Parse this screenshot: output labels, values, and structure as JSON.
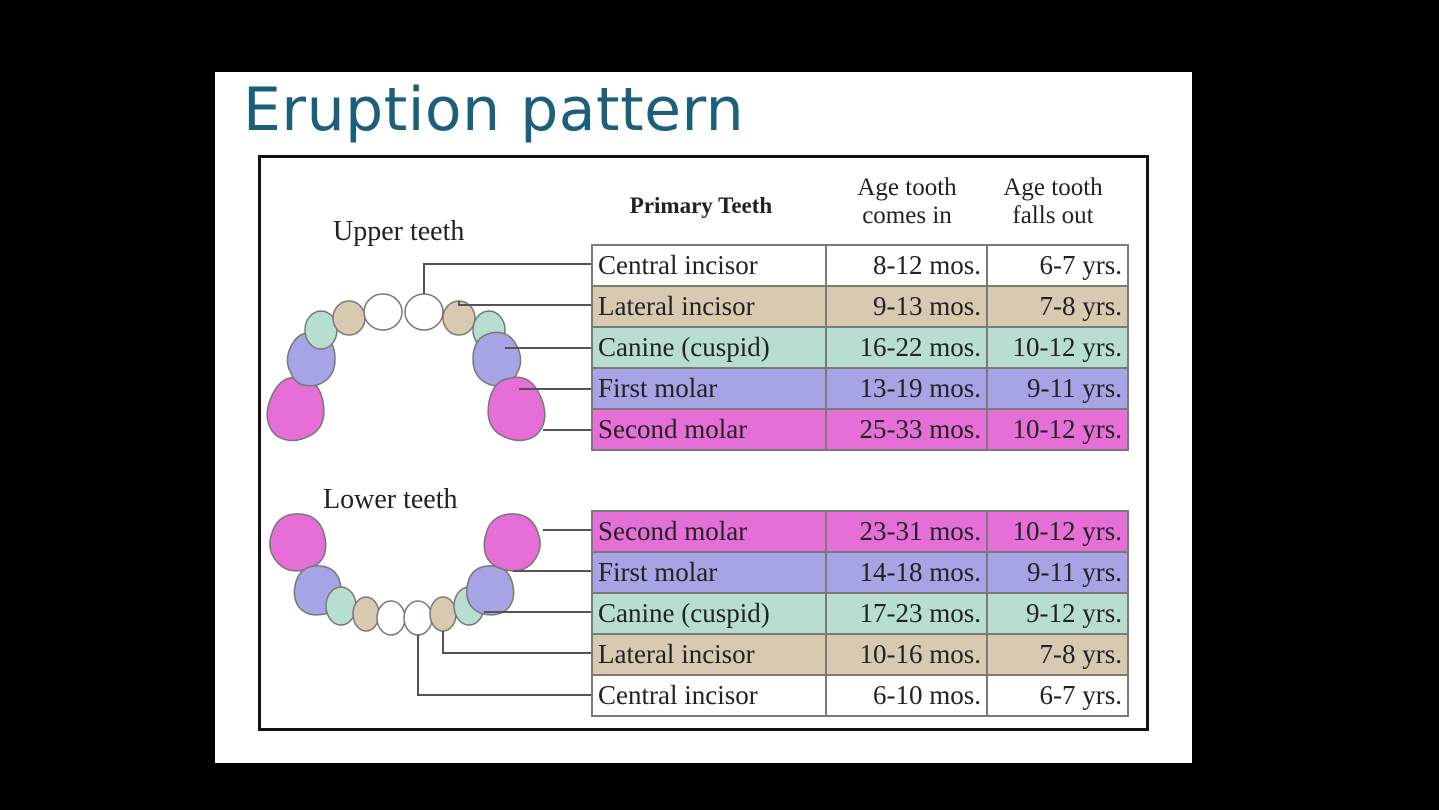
{
  "slide": {
    "title": "Eruption pattern"
  },
  "figure": {
    "upper_label": "Upper teeth",
    "lower_label": "Lower teeth",
    "columns": {
      "primary": "Primary Teeth",
      "comes_in": "Age tooth comes in",
      "falls_out": "Age tooth falls out"
    },
    "colors": {
      "white": "#ffffff",
      "tan": "#d8c9b1",
      "teal": "#b8ded2",
      "lavender": "#a7a4e6",
      "pink": "#e56fd7"
    },
    "upper_rows": [
      {
        "name": "Central incisor",
        "in": "8-12 mos.",
        "out": "6-7 yrs.",
        "color": "#ffffff"
      },
      {
        "name": "Lateral incisor",
        "in": "9-13 mos.",
        "out": "7-8 yrs.",
        "color": "#d8c9b1"
      },
      {
        "name": "Canine (cuspid)",
        "in": "16-22 mos.",
        "out": "10-12 yrs.",
        "color": "#b8ded2"
      },
      {
        "name": "First molar",
        "in": "13-19 mos.",
        "out": "9-11 yrs.",
        "color": "#a7a4e6"
      },
      {
        "name": "Second molar",
        "in": "25-33 mos.",
        "out": "10-12 yrs.",
        "color": "#e56fd7"
      }
    ],
    "lower_rows": [
      {
        "name": "Second molar",
        "in": "23-31 mos.",
        "out": "10-12 yrs.",
        "color": "#e56fd7"
      },
      {
        "name": "First molar",
        "in": "14-18 mos.",
        "out": "9-11 yrs.",
        "color": "#a7a4e6"
      },
      {
        "name": "Canine (cuspid)",
        "in": "17-23 mos.",
        "out": "9-12 yrs.",
        "color": "#b8ded2"
      },
      {
        "name": "Lateral incisor",
        "in": "10-16 mos.",
        "out": "7-8 yrs.",
        "color": "#d8c9b1"
      },
      {
        "name": "Central incisor",
        "in": "6-10 mos.",
        "out": "6-7 yrs.",
        "color": "#ffffff"
      }
    ]
  }
}
